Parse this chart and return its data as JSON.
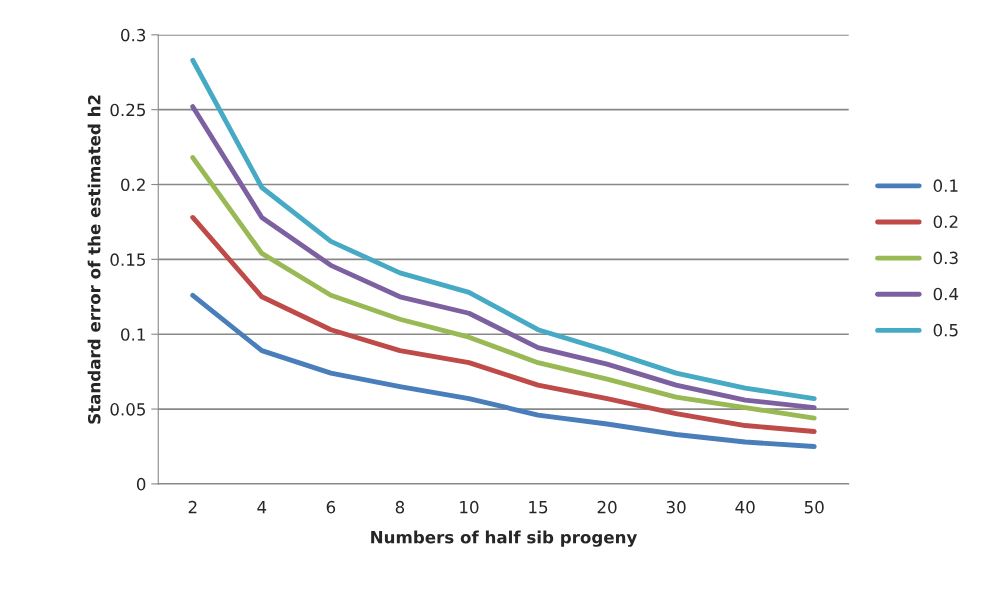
{
  "chart_data": {
    "type": "line",
    "xlabel": "Numbers of half sib progeny",
    "ylabel": "Standard error of the estimated h2",
    "categories": [
      "2",
      "4",
      "6",
      "8",
      "10",
      "15",
      "20",
      "30",
      "40",
      "50"
    ],
    "series": [
      {
        "name": "0.1",
        "color": "#4a7ebb",
        "values": [
          0.126,
          0.089,
          0.074,
          0.065,
          0.057,
          0.046,
          0.04,
          0.033,
          0.028,
          0.025
        ]
      },
      {
        "name": "0.2",
        "color": "#be4b48",
        "values": [
          0.178,
          0.125,
          0.103,
          0.089,
          0.081,
          0.066,
          0.057,
          0.047,
          0.039,
          0.035
        ]
      },
      {
        "name": "0.3",
        "color": "#98b954",
        "values": [
          0.218,
          0.154,
          0.126,
          0.11,
          0.098,
          0.081,
          0.07,
          0.058,
          0.051,
          0.044
        ]
      },
      {
        "name": "0.4",
        "color": "#7d60a0",
        "values": [
          0.252,
          0.178,
          0.146,
          0.125,
          0.114,
          0.091,
          0.08,
          0.066,
          0.056,
          0.051
        ]
      },
      {
        "name": "0.5",
        "color": "#46aac5",
        "values": [
          0.283,
          0.198,
          0.162,
          0.141,
          0.128,
          0.103,
          0.089,
          0.074,
          0.064,
          0.057
        ]
      }
    ],
    "ylim": [
      0,
      0.3
    ],
    "yticks": [
      0,
      0.05,
      0.1,
      0.15,
      0.2,
      0.25,
      0.3
    ],
    "grid": "y",
    "legend": "right",
    "marker": "none",
    "line_style": "solid"
  }
}
